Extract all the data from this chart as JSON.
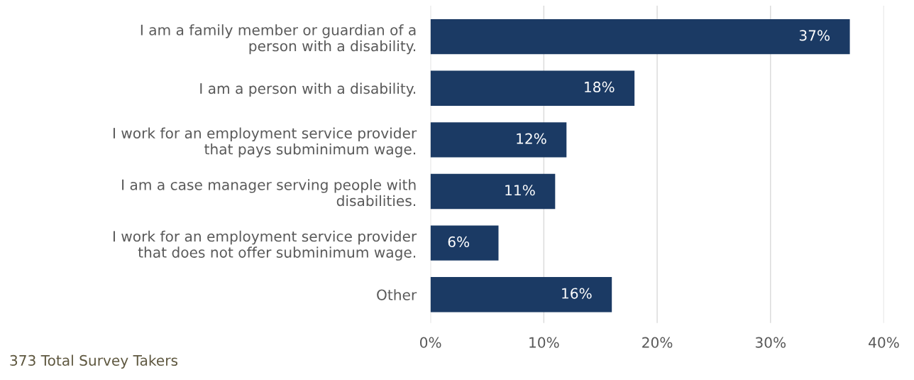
{
  "chart_data": {
    "type": "bar",
    "orientation": "horizontal",
    "categories": [
      "I am a family member or guardian of a\nperson with a disability.",
      "I am a person with a disability.",
      "I work for an employment service provider\nthat pays subminimum wage.",
      "I am a case manager serving people with\ndisabilities.",
      "I work for an employment service provider\nthat does not offer subminimum wage.",
      "Other"
    ],
    "values": [
      37,
      18,
      12,
      11,
      6,
      16
    ],
    "value_labels": [
      "37%",
      "18%",
      "12%",
      "11%",
      "6%",
      "16%"
    ],
    "color": "#1b3a64",
    "xlim": [
      0,
      40
    ],
    "xticks": [
      {
        "value": 0,
        "label": "0%"
      },
      {
        "value": 10,
        "label": "10%"
      },
      {
        "value": 20,
        "label": "20%"
      },
      {
        "value": 30,
        "label": "30%"
      },
      {
        "value": 40,
        "label": "40%"
      }
    ],
    "grid": "x",
    "legend": false,
    "annotations": [
      "373 Total Survey Takers"
    ]
  }
}
